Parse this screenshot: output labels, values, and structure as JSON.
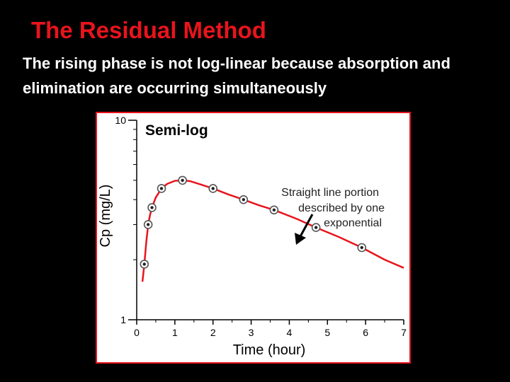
{
  "slide": {
    "title": "The Residual Method",
    "body": "The rising phase is not log-linear because absorption and elimination  are occurring simultaneously"
  },
  "colors": {
    "background": "#000000",
    "title": "#e8141c",
    "body_text": "#ffffff",
    "curve": "#e8141c",
    "frame": "#e8141c",
    "marker": "#555555"
  },
  "chart_data": {
    "type": "line",
    "title": "Semi-log",
    "xlabel": "Time (hour)",
    "ylabel": "Cp (mg/L)",
    "xlim": [
      0,
      7
    ],
    "ylim": [
      1,
      10
    ],
    "yscale": "log",
    "x_ticks": [
      "0",
      "1",
      "2",
      "3",
      "4",
      "5",
      "6",
      "7"
    ],
    "y_tick_labels": [
      "1",
      "10"
    ],
    "grid": false,
    "series": [
      {
        "kind": "points",
        "x": [
          0.2,
          0.3,
          0.4,
          0.65,
          1.2,
          2.0,
          2.8,
          3.6,
          4.7,
          5.9
        ],
        "y": [
          1.9,
          3.0,
          3.65,
          4.55,
          5.0,
          4.55,
          4.0,
          3.55,
          2.9,
          2.3
        ]
      },
      {
        "kind": "curve",
        "x": [
          0.15,
          0.2,
          0.25,
          0.3,
          0.35,
          0.4,
          0.5,
          0.65,
          0.8,
          1.0,
          1.2,
          1.4,
          1.7,
          2.0,
          2.4,
          2.8,
          3.2,
          3.6,
          4.2,
          4.7,
          5.3,
          5.9,
          6.5,
          7.0
        ],
        "y": [
          1.55,
          1.9,
          2.45,
          3.0,
          3.35,
          3.65,
          4.1,
          4.55,
          4.8,
          4.97,
          5.0,
          4.95,
          4.75,
          4.55,
          4.25,
          4.0,
          3.75,
          3.55,
          3.2,
          2.9,
          2.6,
          2.3,
          2.0,
          1.82
        ]
      }
    ],
    "annotations": [
      {
        "lines": [
          "Straight line portion",
          "described by one",
          "exponential"
        ]
      }
    ]
  }
}
